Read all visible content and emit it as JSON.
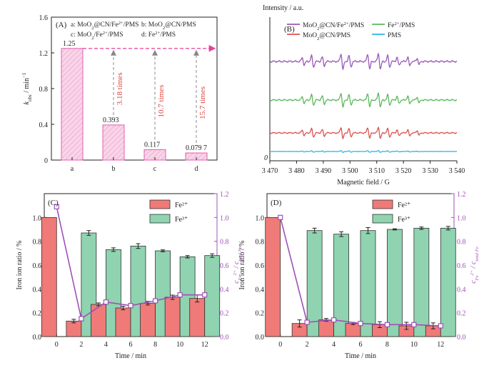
{
  "chart_data": [
    {
      "panel": "(A)",
      "type": "bar",
      "categories": [
        "a",
        "b",
        "c",
        "d"
      ],
      "values": [
        1.25,
        0.393,
        0.117,
        0.0797
      ],
      "value_labels": [
        "1.25",
        "0.393",
        "0.117",
        "0.079 7"
      ],
      "ylim": [
        0,
        1.6
      ],
      "yticks": [
        "0",
        "0.4",
        "0.8",
        "1.2",
        "1.6"
      ],
      "ylabel_main": "k",
      "ylabel_sub": "obs",
      "ylabel_unit": " / min",
      "ylabel_sup": "−1",
      "legend": [
        {
          "key": "a: ",
          "parts": [
            "MoO",
            "2",
            "@CN/Fe",
            "2+",
            "/PMS"
          ]
        },
        {
          "key": "b: ",
          "parts": [
            "MoO",
            "2",
            "@CN/PMS",
            "",
            ""
          ]
        },
        {
          "key": "c: ",
          "parts": [
            "MoO",
            "2",
            "/Fe",
            "2+",
            "/PMS"
          ]
        },
        {
          "key": "d: ",
          "parts": [
            "Fe",
            "",
            "",
            "2+",
            "/PMS"
          ]
        }
      ],
      "annotations": [
        "3.18 times",
        "10.7 times",
        "15.7 times"
      ],
      "colors": {
        "bar_fill": "#f4b6d6",
        "bar_edge": "#e060b0",
        "arrow": "#e8409a",
        "annotation": "#d9453d"
      }
    },
    {
      "panel": "(B)",
      "type": "line",
      "ylabel": "Intensity / a.u.",
      "xlabel": "Magnetic field / G",
      "xlim": [
        3470,
        3540
      ],
      "xticks": [
        "3 470",
        "3 480",
        "3 490",
        "3 500",
        "3 510",
        "3 520",
        "3 530",
        "3 540"
      ],
      "y_zero_label": "0",
      "peak_positions_G": [
        3482.5,
        3486,
        3490,
        3497,
        3500,
        3507,
        3511,
        3514.5,
        3518,
        3522,
        3525.5
      ],
      "series": [
        {
          "name_parts": [
            "MoO",
            "2",
            "@CN/Fe",
            "2+",
            "/PMS"
          ],
          "color": "#9b59b6",
          "amplitude": 1.0
        },
        {
          "name_parts": [
            "MoO",
            "2",
            "@CN/PMS",
            "",
            ""
          ],
          "color": "#d9534f",
          "amplitude": 0.72
        },
        {
          "name_parts": [
            "Fe",
            "",
            "",
            "2+",
            "/PMS"
          ],
          "color": "#5cb85c",
          "amplitude": 0.9
        },
        {
          "name_parts": [
            "PMS",
            "",
            "",
            "",
            ""
          ],
          "color": "#29b6e0",
          "amplitude": 0.12
        }
      ]
    },
    {
      "panel": "(C)",
      "type": "bar",
      "x": [
        0,
        2,
        4,
        6,
        8,
        10,
        12
      ],
      "xlabel": "Time / min",
      "ylabel": "Iron ion ratio / %",
      "ylim": [
        0,
        1.2
      ],
      "yticks": [
        "0.0",
        "0.2",
        "0.4",
        "0.6",
        "0.8",
        "1.0",
        "1.2"
      ],
      "y2ticks": [
        "0.0",
        "0.2",
        "0.4",
        "0.6",
        "0.8",
        "1.0",
        "1.2"
      ],
      "y2label": {
        "main": "c",
        "sub1": "Fe",
        "sup": "2+",
        "mid": " / c",
        "sub2": "total Fe"
      },
      "series": [
        {
          "name": "Fe²⁺",
          "values": [
            1.0,
            0.13,
            0.27,
            0.24,
            0.28,
            0.33,
            0.32
          ],
          "errors": [
            0,
            0.015,
            0.012,
            0.015,
            0.015,
            0.018,
            0.03
          ],
          "color": "#f07a78"
        },
        {
          "name": "Fe³⁺",
          "values": [
            0,
            0.87,
            0.73,
            0.76,
            0.72,
            0.67,
            0.68
          ],
          "errors": [
            0,
            0.02,
            0.015,
            0.02,
            0.008,
            0.01,
            0.015
          ],
          "color": "#8fd3b0"
        }
      ],
      "line": {
        "values": [
          1.09,
          0.15,
          0.29,
          0.26,
          0.3,
          0.35,
          0.35
        ],
        "color": "#a050b8"
      }
    },
    {
      "panel": "(D)",
      "type": "bar",
      "x": [
        0,
        2,
        4,
        6,
        8,
        10,
        12
      ],
      "xlabel": "Time / min",
      "ylabel": "Iron ion ratio / %",
      "ylim": [
        0,
        1.2
      ],
      "yticks": [
        "0.0",
        "0.2",
        "0.4",
        "0.6",
        "0.8",
        "1.0",
        "1.2"
      ],
      "y2ticks": [
        "0.0",
        "0.2",
        "0.4",
        "0.6",
        "0.8",
        "1.0",
        "1.2"
      ],
      "y2label": {
        "main": "c",
        "sub1": "Fe",
        "sup": "2+",
        "mid": " / c",
        "sub2": "total Fe"
      },
      "series": [
        {
          "name": "Fe²⁺",
          "values": [
            1.0,
            0.11,
            0.14,
            0.11,
            0.1,
            0.09,
            0.09
          ],
          "errors": [
            0,
            0.03,
            0.012,
            0.01,
            0.025,
            0.03,
            0.025
          ],
          "color": "#f07a78"
        },
        {
          "name": "Fe³⁺",
          "values": [
            0,
            0.89,
            0.86,
            0.89,
            0.9,
            0.91,
            0.91
          ],
          "errors": [
            0,
            0.02,
            0.02,
            0.025,
            0.005,
            0.01,
            0.015
          ],
          "color": "#8fd3b0"
        }
      ],
      "line": {
        "values": [
          1.0,
          0.12,
          0.14,
          0.11,
          0.1,
          0.1,
          0.09
        ],
        "color": "#a050b8"
      }
    }
  ]
}
